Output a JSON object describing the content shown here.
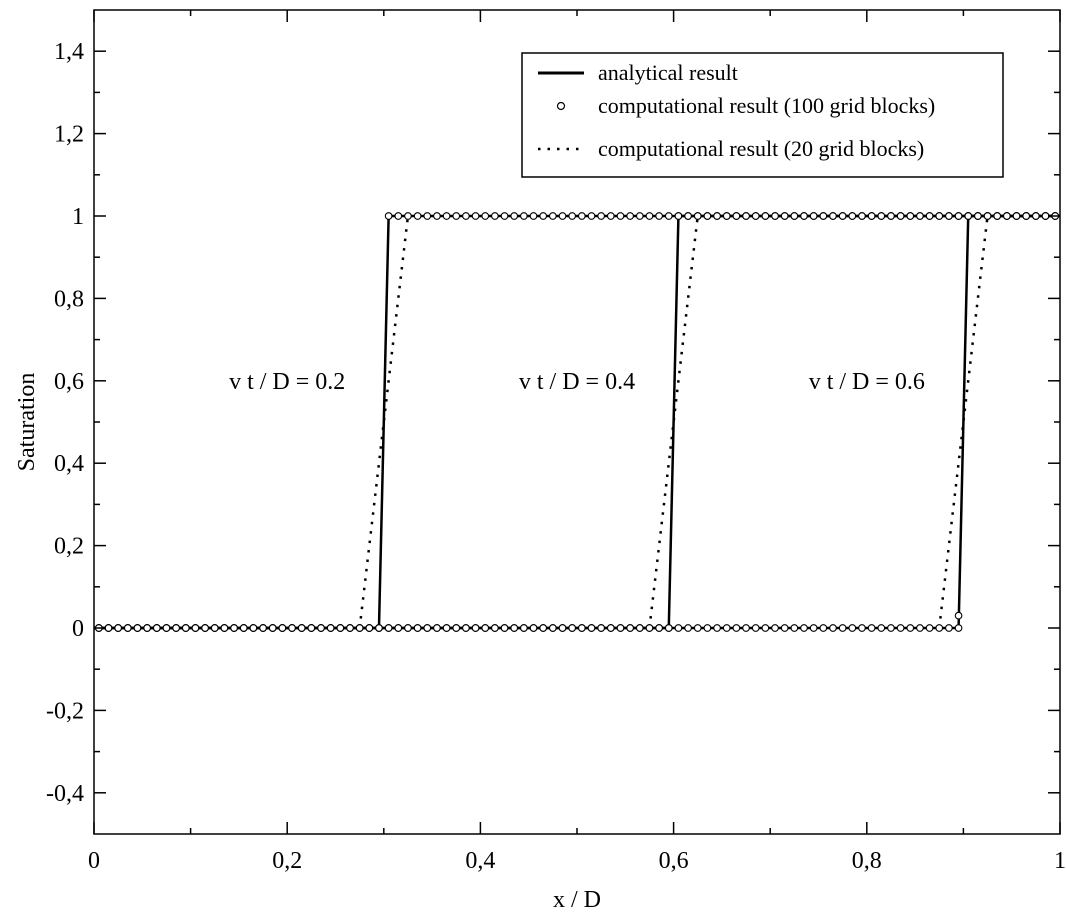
{
  "chart_data": {
    "type": "line",
    "title": "",
    "xlabel": "x  / D",
    "ylabel": "Saturation",
    "xlim": [
      0,
      1
    ],
    "ylim": [
      -0.5,
      1.5
    ],
    "x_ticks": [
      0,
      0.2,
      0.4,
      0.6,
      0.8,
      1
    ],
    "x_tick_labels": [
      "0",
      "0,2",
      "0,4",
      "0,6",
      "0,8",
      "1"
    ],
    "y_ticks": [
      -0.4,
      -0.2,
      0,
      0.2,
      0.4,
      0.6,
      0.8,
      1,
      1.2,
      1.4
    ],
    "y_tick_labels": [
      "-0,4",
      "-0,2",
      "0",
      "0,2",
      "0,4",
      "0,6",
      "0,8",
      "1",
      "1,2",
      "1,4"
    ],
    "grid": false,
    "legend_position": "top-right",
    "series": [
      {
        "name": "analytical result",
        "style": "solid",
        "marker": "none",
        "fronts": [
          {
            "x": [
              0,
              0.295,
              0.305,
              1
            ],
            "y": [
              0,
              0,
              1,
              1
            ]
          },
          {
            "x": [
              0,
              0.595,
              0.605,
              1
            ],
            "y": [
              0,
              0,
              1,
              1
            ]
          },
          {
            "x": [
              0,
              0.895,
              0.905,
              1
            ],
            "y": [
              0,
              0,
              1,
              1
            ]
          }
        ]
      },
      {
        "name": "computational result (100 grid blocks)",
        "style": "none",
        "marker": "circle",
        "fronts": [
          {
            "shock_between": [
              0.295,
              0.305
            ]
          },
          {
            "shock_between": [
              0.595,
              0.605
            ]
          },
          {
            "shock_between": [
              0.895,
              0.905
            ],
            "intermediate": {
              "x": 0.895,
              "y": 0.03
            }
          }
        ],
        "x_start": 0.005,
        "x_step": 0.01
      },
      {
        "name": "computational result (20 grid blocks)",
        "style": "dotted",
        "marker": "none",
        "fronts": [
          {
            "x": [
              0.275,
              0.325
            ],
            "y": [
              0,
              1
            ]
          },
          {
            "x": [
              0.575,
              0.625
            ],
            "y": [
              0,
              1
            ]
          },
          {
            "x": [
              0.875,
              0.925
            ],
            "y": [
              0,
              1
            ]
          }
        ]
      }
    ],
    "annotations": [
      {
        "text": "v t / D = 0.2",
        "x": 0.2,
        "y": 0.6
      },
      {
        "text": "v t / D = 0.4",
        "x": 0.5,
        "y": 0.6
      },
      {
        "text": "v t / D = 0.6",
        "x": 0.8,
        "y": 0.6
      }
    ],
    "colors": {
      "line": "#000000",
      "background": "#ffffff"
    }
  }
}
